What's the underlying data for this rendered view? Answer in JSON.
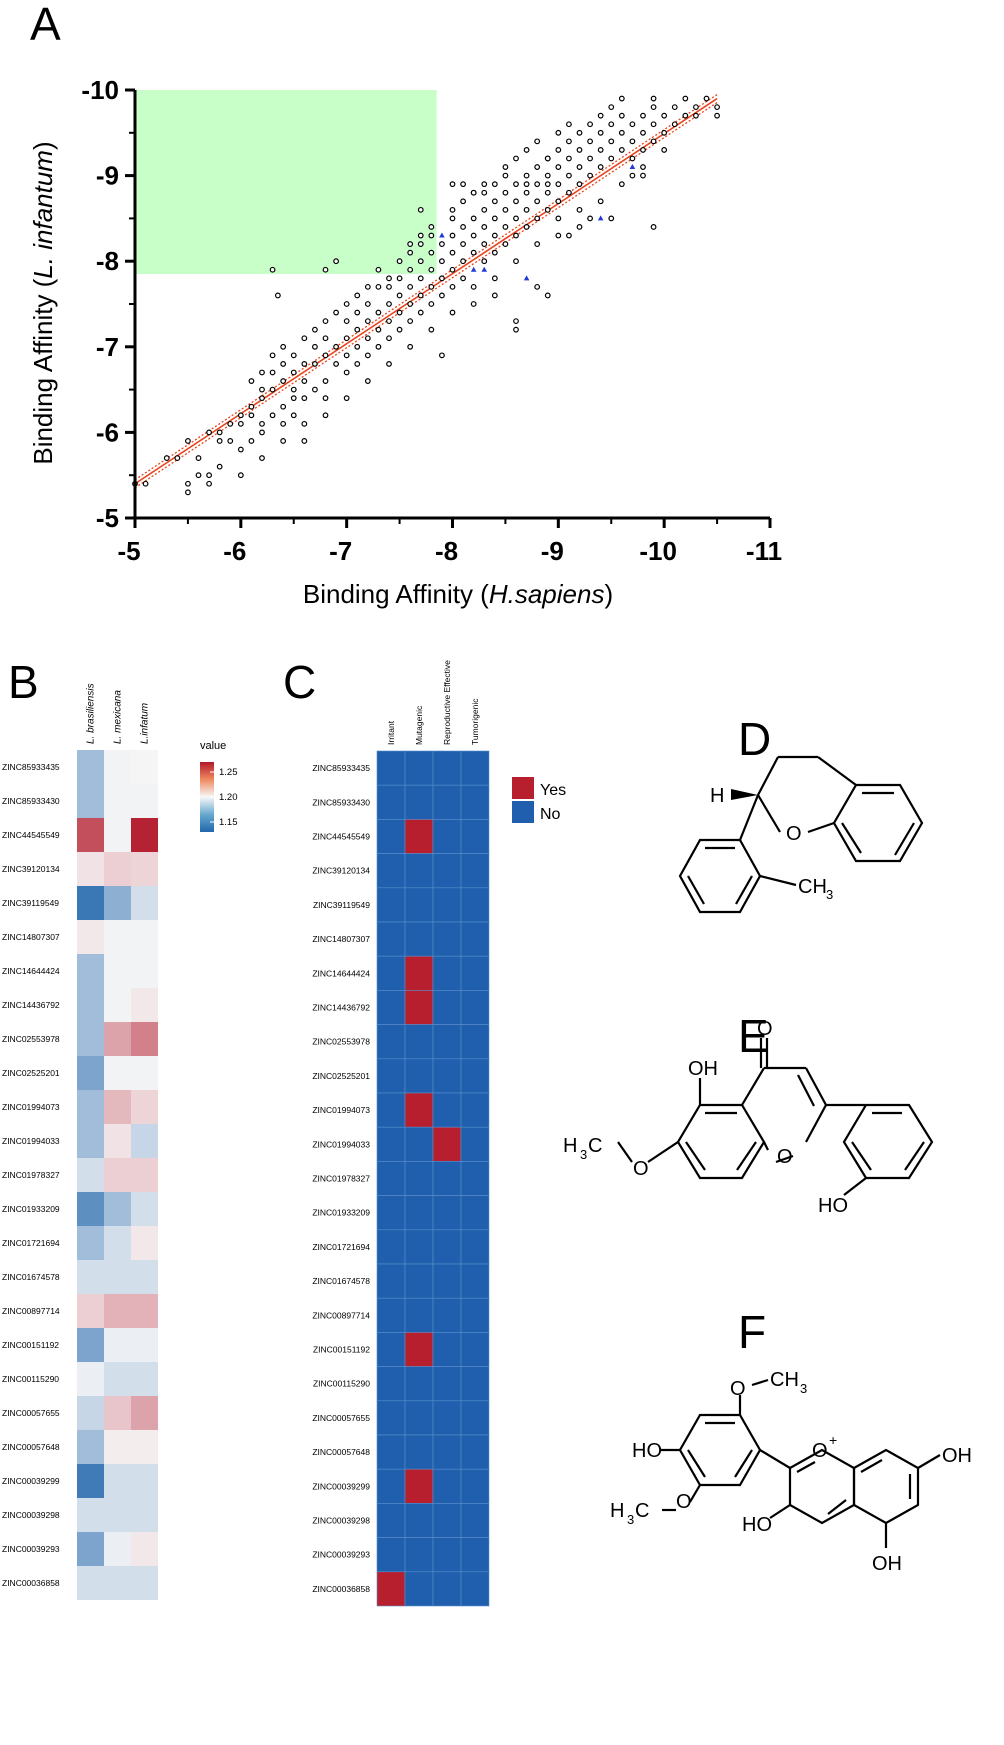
{
  "panels": {
    "A": "A",
    "B": "B",
    "C": "C",
    "D": "D",
    "E": "E",
    "F": "F"
  },
  "compounds": [
    "ZINC85933435",
    "ZINC85933430",
    "ZINC44545549",
    "ZINC39120134",
    "ZINC39119549",
    "ZINC14807307",
    "ZINC14644424",
    "ZINC14436792",
    "ZINC02553978",
    "ZINC02525201",
    "ZINC01994073",
    "ZINC01994033",
    "ZINC01978327",
    "ZINC01933209",
    "ZINC01721694",
    "ZINC01674578",
    "ZINC00897714",
    "ZINC00151192",
    "ZINC00115290",
    "ZINC00057655",
    "ZINC00057648",
    "ZINC00039299",
    "ZINC00039298",
    "ZINC00039293",
    "ZINC00036858"
  ],
  "chart_data": [
    {
      "type": "scatter",
      "panel": "A",
      "xlabel_prefix": "Binding Affinity (",
      "xlabel_italic": "H.sapiens",
      "xlabel_suffix": ")",
      "ylabel_prefix": "Binding Affinity (",
      "ylabel_italic": "L. infantum",
      "ylabel_suffix": ")",
      "xlim": [
        -5,
        -11
      ],
      "ylim": [
        -5,
        -10
      ],
      "x_ticks": [
        "-5",
        "-6",
        "-7",
        "-8",
        "-9",
        "-10",
        "-11"
      ],
      "y_ticks": [
        "-5",
        "-6",
        "-7",
        "-8",
        "-9",
        "-10"
      ],
      "highlight_region": {
        "x": [
          -5,
          -7.85
        ],
        "y": [
          -7.85,
          -10
        ],
        "color": "#c8ffc8"
      },
      "regression_line": {
        "from": [
          -5,
          -5.4
        ],
        "to": [
          -10.5,
          -9.9
        ],
        "color": "#e8431c"
      },
      "point_color": "#000000",
      "highlight_point_color": "#1f3ad8",
      "highlight_points": [
        [
          -7.9,
          -8.3
        ],
        [
          -8.2,
          -7.9
        ],
        [
          -8.3,
          -7.9
        ],
        [
          -8.7,
          -7.8
        ],
        [
          -9.4,
          -8.5
        ],
        [
          -9.7,
          -9.1
        ]
      ],
      "points": [
        [
          -5,
          -5.4
        ],
        [
          -5.1,
          -5.4
        ],
        [
          -5.3,
          -5.7
        ],
        [
          -5.4,
          -5.7
        ],
        [
          -5.5,
          -5.9
        ],
        [
          -5.5,
          -5.3
        ],
        [
          -5.5,
          -5.4
        ],
        [
          -5.6,
          -5.7
        ],
        [
          -5.6,
          -5.5
        ],
        [
          -5.7,
          -6.0
        ],
        [
          -5.7,
          -5.4
        ],
        [
          -5.7,
          -5.5
        ],
        [
          -5.8,
          -5.9
        ],
        [
          -5.8,
          -6.0
        ],
        [
          -5.8,
          -5.6
        ],
        [
          -5.9,
          -6.1
        ],
        [
          -5.9,
          -5.9
        ],
        [
          -6.0,
          -6.1
        ],
        [
          -6.0,
          -6.2
        ],
        [
          -6.0,
          -5.8
        ],
        [
          -6.1,
          -6.2
        ],
        [
          -6.1,
          -6.3
        ],
        [
          -6.1,
          -5.9
        ],
        [
          -6.2,
          -6.4
        ],
        [
          -6.2,
          -6.5
        ],
        [
          -6.2,
          -6.1
        ],
        [
          -6.2,
          -6.0
        ],
        [
          -6.3,
          -6.5
        ],
        [
          -6.3,
          -6.7
        ],
        [
          -6.3,
          -6.2
        ],
        [
          -6.3,
          -7.9
        ],
        [
          -6.35,
          -7.6
        ],
        [
          -6.4,
          -6.6
        ],
        [
          -6.4,
          -6.8
        ],
        [
          -6.4,
          -6.3
        ],
        [
          -6.4,
          -6.1
        ],
        [
          -6.5,
          -6.7
        ],
        [
          -6.5,
          -6.5
        ],
        [
          -6.5,
          -6.4
        ],
        [
          -6.5,
          -6.2
        ],
        [
          -6.6,
          -6.8
        ],
        [
          -6.6,
          -6.6
        ],
        [
          -6.6,
          -6.4
        ],
        [
          -6.6,
          -5.9
        ],
        [
          -6.7,
          -7.0
        ],
        [
          -6.7,
          -6.8
        ],
        [
          -6.7,
          -6.5
        ],
        [
          -6.8,
          -7.1
        ],
        [
          -6.8,
          -6.9
        ],
        [
          -6.8,
          -6.6
        ],
        [
          -6.8,
          -6.4
        ],
        [
          -6.8,
          -7.9
        ],
        [
          -6.9,
          -7.0
        ],
        [
          -6.9,
          -6.8
        ],
        [
          -6.9,
          -8.0
        ],
        [
          -7.0,
          -7.3
        ],
        [
          -7.0,
          -7.1
        ],
        [
          -7.0,
          -6.9
        ],
        [
          -7.0,
          -6.7
        ],
        [
          -7.1,
          -7.4
        ],
        [
          -7.1,
          -7.2
        ],
        [
          -7.1,
          -7.0
        ],
        [
          -7.1,
          -6.8
        ],
        [
          -7.2,
          -7.5
        ],
        [
          -7.2,
          -7.3
        ],
        [
          -7.2,
          -7.1
        ],
        [
          -7.2,
          -6.9
        ],
        [
          -7.3,
          -7.7
        ],
        [
          -7.3,
          -7.4
        ],
        [
          -7.3,
          -7.2
        ],
        [
          -7.3,
          -7.0
        ],
        [
          -7.3,
          -7.9
        ],
        [
          -7.4,
          -7.7
        ],
        [
          -7.4,
          -7.5
        ],
        [
          -7.4,
          -7.3
        ],
        [
          -7.4,
          -7.1
        ],
        [
          -7.4,
          -7.8
        ],
        [
          -7.5,
          -7.8
        ],
        [
          -7.5,
          -7.6
        ],
        [
          -7.5,
          -7.4
        ],
        [
          -7.5,
          -7.2
        ],
        [
          -7.5,
          -8.0
        ],
        [
          -7.6,
          -7.9
        ],
        [
          -7.6,
          -7.7
        ],
        [
          -7.6,
          -7.5
        ],
        [
          -7.6,
          -7.3
        ],
        [
          -7.6,
          -8.1
        ],
        [
          -7.7,
          -8.0
        ],
        [
          -7.7,
          -7.8
        ],
        [
          -7.7,
          -7.6
        ],
        [
          -7.7,
          -7.4
        ],
        [
          -7.7,
          -8.2
        ],
        [
          -7.7,
          -8.6
        ],
        [
          -7.8,
          -8.1
        ],
        [
          -7.8,
          -7.9
        ],
        [
          -7.8,
          -7.7
        ],
        [
          -7.8,
          -7.5
        ],
        [
          -7.8,
          -8.3
        ],
        [
          -7.9,
          -8.2
        ],
        [
          -7.9,
          -8.0
        ],
        [
          -7.9,
          -7.8
        ],
        [
          -7.9,
          -7.6
        ],
        [
          -7.9,
          -6.9
        ],
        [
          -8.0,
          -8.3
        ],
        [
          -8.0,
          -8.1
        ],
        [
          -8.0,
          -7.9
        ],
        [
          -8.0,
          -7.7
        ],
        [
          -8.0,
          -8.5
        ],
        [
          -8.0,
          -8.9
        ],
        [
          -8.1,
          -8.4
        ],
        [
          -8.1,
          -8.2
        ],
        [
          -8.1,
          -8.0
        ],
        [
          -8.1,
          -7.8
        ],
        [
          -8.1,
          -8.9
        ],
        [
          -8.2,
          -8.5
        ],
        [
          -8.2,
          -8.3
        ],
        [
          -8.2,
          -8.1
        ],
        [
          -8.2,
          -7.7
        ],
        [
          -8.2,
          -8.8
        ],
        [
          -8.3,
          -8.6
        ],
        [
          -8.3,
          -8.4
        ],
        [
          -8.3,
          -8.2
        ],
        [
          -8.3,
          -8.0
        ],
        [
          -8.3,
          -8.8
        ],
        [
          -8.4,
          -8.7
        ],
        [
          -8.4,
          -8.5
        ],
        [
          -8.4,
          -8.3
        ],
        [
          -8.4,
          -8.1
        ],
        [
          -8.4,
          -7.6
        ],
        [
          -8.4,
          -8.9
        ],
        [
          -8.5,
          -8.8
        ],
        [
          -8.5,
          -8.6
        ],
        [
          -8.5,
          -8.4
        ],
        [
          -8.5,
          -8.2
        ],
        [
          -8.5,
          -9.0
        ],
        [
          -8.6,
          -8.9
        ],
        [
          -8.6,
          -8.7
        ],
        [
          -8.6,
          -8.5
        ],
        [
          -8.6,
          -8.3
        ],
        [
          -8.6,
          -7.3
        ],
        [
          -8.6,
          -7.2
        ],
        [
          -8.7,
          -9.0
        ],
        [
          -8.7,
          -8.8
        ],
        [
          -8.7,
          -8.6
        ],
        [
          -8.7,
          -8.4
        ],
        [
          -8.7,
          -8.9
        ],
        [
          -8.8,
          -9.1
        ],
        [
          -8.8,
          -8.9
        ],
        [
          -8.8,
          -8.7
        ],
        [
          -8.8,
          -8.5
        ],
        [
          -8.8,
          -7.7
        ],
        [
          -8.9,
          -9.2
        ],
        [
          -8.9,
          -9.0
        ],
        [
          -8.9,
          -8.8
        ],
        [
          -8.9,
          -8.6
        ],
        [
          -8.9,
          -7.6
        ],
        [
          -8.9,
          -8.9
        ],
        [
          -8.9,
          -9.2
        ],
        [
          -9.0,
          -9.3
        ],
        [
          -9.0,
          -9.1
        ],
        [
          -9.0,
          -8.9
        ],
        [
          -9.0,
          -8.7
        ],
        [
          -9.0,
          -8.5
        ],
        [
          -9.1,
          -9.4
        ],
        [
          -9.1,
          -9.2
        ],
        [
          -9.1,
          -9.0
        ],
        [
          -9.1,
          -8.8
        ],
        [
          -9.1,
          -8.3
        ],
        [
          -9.2,
          -9.5
        ],
        [
          -9.2,
          -9.3
        ],
        [
          -9.2,
          -9.1
        ],
        [
          -9.2,
          -8.9
        ],
        [
          -9.2,
          -8.6
        ],
        [
          -9.3,
          -9.6
        ],
        [
          -9.3,
          -9.4
        ],
        [
          -9.3,
          -9.2
        ],
        [
          -9.3,
          -9.0
        ],
        [
          -9.3,
          -8.5
        ],
        [
          -9.4,
          -9.7
        ],
        [
          -9.4,
          -9.5
        ],
        [
          -9.4,
          -9.3
        ],
        [
          -9.4,
          -9.1
        ],
        [
          -9.5,
          -9.8
        ],
        [
          -9.5,
          -9.6
        ],
        [
          -9.5,
          -9.4
        ],
        [
          -9.5,
          -9.2
        ],
        [
          -9.5,
          -8.5
        ],
        [
          -9.6,
          -9.9
        ],
        [
          -9.6,
          -9.7
        ],
        [
          -9.6,
          -9.5
        ],
        [
          -9.6,
          -9.3
        ],
        [
          -9.7,
          -9.6
        ],
        [
          -9.7,
          -9.4
        ],
        [
          -9.7,
          -9.2
        ],
        [
          -9.7,
          -9.0
        ],
        [
          -9.8,
          -9.7
        ],
        [
          -9.8,
          -9.5
        ],
        [
          -9.8,
          -9.3
        ],
        [
          -9.8,
          -9.1
        ],
        [
          -9.9,
          -9.8
        ],
        [
          -9.9,
          -9.6
        ],
        [
          -9.9,
          -9.4
        ],
        [
          -9.9,
          -8.4
        ],
        [
          -9.9,
          -9.9
        ],
        [
          -10.0,
          -9.7
        ],
        [
          -10.0,
          -9.5
        ],
        [
          -10.0,
          -9.3
        ],
        [
          -10.1,
          -9.8
        ],
        [
          -10.1,
          -9.6
        ],
        [
          -10.2,
          -9.9
        ],
        [
          -10.2,
          -9.7
        ],
        [
          -10.3,
          -9.8
        ],
        [
          -10.3,
          -9.7
        ],
        [
          -10.4,
          -9.9
        ],
        [
          -10.5,
          -9.8
        ],
        [
          -10.5,
          -9.7
        ],
        [
          -6.1,
          -6.6
        ],
        [
          -6.2,
          -6.7
        ],
        [
          -6.3,
          -6.9
        ],
        [
          -6.4,
          -7.0
        ],
        [
          -6.5,
          -6.9
        ],
        [
          -6.6,
          -7.1
        ],
        [
          -6.7,
          -7.2
        ],
        [
          -6.8,
          -7.3
        ],
        [
          -6.9,
          -7.4
        ],
        [
          -7.0,
          -7.5
        ],
        [
          -7.1,
          -7.6
        ],
        [
          -7.2,
          -7.7
        ],
        [
          -7.6,
          -8.2
        ],
        [
          -7.7,
          -8.3
        ],
        [
          -7.8,
          -8.4
        ],
        [
          -8.0,
          -8.6
        ],
        [
          -8.1,
          -8.7
        ],
        [
          -8.2,
          -8.8
        ],
        [
          -8.3,
          -8.9
        ],
        [
          -8.5,
          -9.1
        ],
        [
          -8.6,
          -9.2
        ],
        [
          -8.7,
          -9.3
        ],
        [
          -8.8,
          -9.4
        ],
        [
          -9.0,
          -9.5
        ],
        [
          -9.1,
          -9.6
        ],
        [
          -6.0,
          -5.5
        ],
        [
          -6.2,
          -5.7
        ],
        [
          -6.4,
          -5.9
        ],
        [
          -6.6,
          -6.1
        ],
        [
          -6.8,
          -6.2
        ],
        [
          -7.0,
          -6.4
        ],
        [
          -7.2,
          -6.6
        ],
        [
          -7.4,
          -6.8
        ],
        [
          -7.6,
          -7.0
        ],
        [
          -7.8,
          -7.2
        ],
        [
          -8.0,
          -7.4
        ],
        [
          -8.2,
          -7.5
        ],
        [
          -8.4,
          -7.8
        ],
        [
          -8.6,
          -8.0
        ],
        [
          -8.8,
          -8.2
        ],
        [
          -9.0,
          -8.3
        ],
        [
          -9.2,
          -8.4
        ],
        [
          -9.4,
          -8.7
        ],
        [
          -9.6,
          -8.9
        ],
        [
          -9.8,
          -9.0
        ]
      ]
    },
    {
      "type": "heatmap",
      "panel": "B",
      "columns": [
        "L. brasiliensis",
        "L. mexicana",
        "L.infatum"
      ],
      "legend_title": "value",
      "legend_ticks": [
        "1.25",
        "1.20",
        "1.15"
      ],
      "color_scale": {
        "min": 1.11,
        "mid": 1.18,
        "max": 1.27,
        "low": "#2166ac",
        "center": "#f7f7f7",
        "high": "#b2182b"
      },
      "values": [
        [
          1.152,
          1.178,
          1.181
        ],
        [
          1.152,
          1.178,
          1.178
        ],
        [
          1.248,
          1.178,
          1.266
        ],
        [
          1.188,
          1.196,
          1.194
        ],
        [
          1.118,
          1.145,
          1.168
        ],
        [
          1.186,
          1.178,
          1.178
        ],
        [
          1.152,
          1.178,
          1.178
        ],
        [
          1.152,
          1.178,
          1.186
        ],
        [
          1.152,
          1.214,
          1.228
        ],
        [
          1.14,
          1.178,
          1.178
        ],
        [
          1.152,
          1.205,
          1.194
        ],
        [
          1.152,
          1.188,
          1.164
        ],
        [
          1.168,
          1.196,
          1.196
        ],
        [
          1.13,
          1.152,
          1.168
        ],
        [
          1.152,
          1.168,
          1.186
        ],
        [
          1.168,
          1.168,
          1.168
        ],
        [
          1.196,
          1.208,
          1.208
        ],
        [
          1.14,
          1.176,
          1.176
        ],
        [
          1.176,
          1.168,
          1.168
        ],
        [
          1.164,
          1.2,
          1.214
        ],
        [
          1.152,
          1.184,
          1.184
        ],
        [
          1.12,
          1.168,
          1.168
        ],
        [
          1.168,
          1.168,
          1.168
        ],
        [
          1.14,
          1.176,
          1.186
        ],
        [
          1.168,
          1.168,
          1.168
        ]
      ]
    },
    {
      "type": "heatmap",
      "panel": "C",
      "columns": [
        "Irritant",
        "Mutagenic",
        "Reproductive Effective",
        "Tumorigenic"
      ],
      "legend": [
        {
          "label": "Yes",
          "color": "#b81f2e"
        },
        {
          "label": "No",
          "color": "#1f5fad"
        }
      ],
      "yes_cells": [
        [
          2,
          1
        ],
        [
          6,
          1
        ],
        [
          7,
          1
        ],
        [
          10,
          1
        ],
        [
          11,
          2
        ],
        [
          17,
          1
        ],
        [
          21,
          1
        ],
        [
          24,
          0
        ]
      ]
    }
  ],
  "structures": {
    "D": {
      "atoms": [
        "H",
        "O",
        "CH",
        "3"
      ]
    },
    "E": {
      "atoms": [
        "OH",
        "O",
        "O",
        "H",
        "3",
        "C",
        "O",
        "HO"
      ]
    },
    "F": {
      "atoms": [
        "O",
        "CH",
        "3",
        "HO",
        "O",
        "H",
        "3",
        "C",
        "O",
        "+",
        "OH",
        "HO",
        "OH"
      ]
    }
  }
}
